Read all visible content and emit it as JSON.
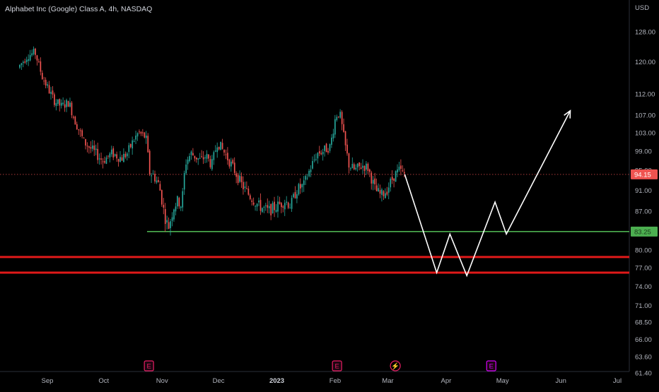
{
  "header": {
    "title": "Alphabet Inc (Google) Class A, 4h, NASDAQ"
  },
  "colors": {
    "background": "#000000",
    "up_candle": "#26a69a",
    "down_candle": "#ef5350",
    "support_line": "#4caf50",
    "red_line": "#e01919",
    "projection": "#ffffff",
    "price_badge": "#ef5350",
    "earnings_icon": "#e91e63",
    "dividend_icon": "#d500f9",
    "axis_text": "#b2b5be"
  },
  "chart_data": {
    "type": "candlestick",
    "symbol": "Alphabet Inc (Google) Class A",
    "timeframe": "4h",
    "exchange": "NASDAQ",
    "currency": "USD",
    "ylim": [
      61.4,
      133
    ],
    "y_scale": "log",
    "y_ticks": [
      "128.00",
      "120.00",
      "112.00",
      "107.00",
      "103.00",
      "99.00",
      "95.00",
      "91.00",
      "87.00",
      "80.00",
      "77.00",
      "74.00",
      "71.00",
      "68.50",
      "66.00",
      "63.60",
      "61.40"
    ],
    "x_ticks": [
      "Sep",
      "Oct",
      "Nov",
      "Dec",
      "2023",
      "Feb",
      "Mar",
      "Apr",
      "May",
      "Jun",
      "Jul"
    ],
    "x_range": [
      "2022-08-17",
      "2023-07-20"
    ],
    "current_price": 94.15,
    "current_price_label": "94.15",
    "support_level": 83.25,
    "support_label": "83.25",
    "support_start": "2022-10-24",
    "red_levels": [
      78.8,
      76.2
    ],
    "price_path": [
      [
        "2022-08-17",
        118.5
      ],
      [
        "2022-08-22",
        121.5
      ],
      [
        "2022-08-26",
        122.5
      ],
      [
        "2022-08-30",
        116
      ],
      [
        "2022-09-05",
        110.5
      ],
      [
        "2022-09-09",
        109
      ],
      [
        "2022-09-13",
        110
      ],
      [
        "2022-09-16",
        106
      ],
      [
        "2022-09-21",
        101
      ],
      [
        "2022-09-26",
        99
      ],
      [
        "2022-10-01",
        97
      ],
      [
        "2022-10-06",
        98.5
      ],
      [
        "2022-10-11",
        97.5
      ],
      [
        "2022-10-14",
        98.5
      ],
      [
        "2022-10-17",
        101
      ],
      [
        "2022-10-20",
        103
      ],
      [
        "2022-10-24",
        102
      ],
      [
        "2022-10-26",
        94.5
      ],
      [
        "2022-10-28",
        94
      ],
      [
        "2022-10-31",
        92
      ],
      [
        "2022-11-03",
        86
      ],
      [
        "2022-11-05",
        84
      ],
      [
        "2022-11-08",
        88
      ],
      [
        "2022-11-10",
        89
      ],
      [
        "2022-11-12",
        88
      ],
      [
        "2022-11-14",
        96.5
      ],
      [
        "2022-11-17",
        98.5
      ],
      [
        "2022-11-22",
        97
      ],
      [
        "2022-11-25",
        98
      ],
      [
        "2022-11-28",
        96
      ],
      [
        "2022-12-01",
        101
      ],
      [
        "2022-12-05",
        98.5
      ],
      [
        "2022-12-10",
        95
      ],
      [
        "2022-12-14",
        92
      ],
      [
        "2022-12-18",
        90
      ],
      [
        "2022-12-23",
        88
      ],
      [
        "2022-12-28",
        87
      ],
      [
        "2023-01-02",
        88
      ],
      [
        "2023-01-06",
        89
      ],
      [
        "2023-01-09",
        88
      ],
      [
        "2023-01-12",
        91
      ],
      [
        "2023-01-16",
        92
      ],
      [
        "2023-01-19",
        95
      ],
      [
        "2023-01-23",
        98.5
      ],
      [
        "2023-01-26",
        99
      ],
      [
        "2023-01-30",
        100
      ],
      [
        "2023-02-02",
        107
      ],
      [
        "2023-02-04",
        107.5
      ],
      [
        "2023-02-07",
        100
      ],
      [
        "2023-02-09",
        96
      ],
      [
        "2023-02-12",
        95
      ],
      [
        "2023-02-16",
        96
      ],
      [
        "2023-02-19",
        95.5
      ],
      [
        "2023-02-23",
        91
      ],
      [
        "2023-02-26",
        90
      ],
      [
        "2023-03-01",
        91
      ],
      [
        "2023-03-05",
        94
      ],
      [
        "2023-03-08",
        95
      ],
      [
        "2023-03-10",
        94.15
      ]
    ],
    "projection_path": [
      [
        "2023-03-10",
        94.15
      ],
      [
        "2023-03-27",
        76.2
      ],
      [
        "2023-04-03",
        82.8
      ],
      [
        "2023-04-12",
        75.7
      ],
      [
        "2023-04-27",
        88.7
      ],
      [
        "2023-05-03",
        82.8
      ],
      [
        "2023-06-06",
        108
      ]
    ],
    "events": [
      {
        "kind": "earnings",
        "letter": "E",
        "date": "2022-10-25"
      },
      {
        "kind": "earnings",
        "letter": "E",
        "date": "2023-02-02"
      },
      {
        "kind": "split",
        "letter": "⚡",
        "date": "2023-03-05"
      },
      {
        "kind": "dividend",
        "letter": "E",
        "date": "2023-04-25"
      }
    ]
  }
}
